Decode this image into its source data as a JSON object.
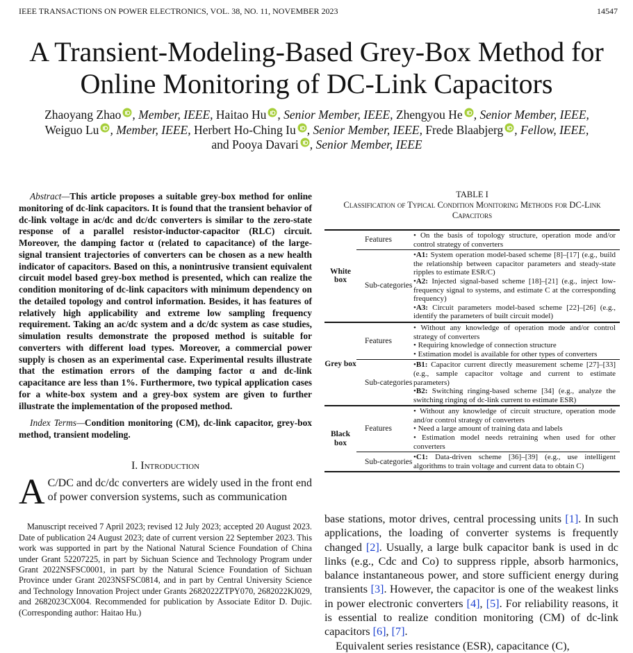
{
  "header": {
    "journal": "IEEE TRANSACTIONS ON POWER ELECTRONICS, VOL. 38, NO. 11, NOVEMBER 2023",
    "page": "14547"
  },
  "title_lines": [
    "A Transient-Modeling-Based Grey-Box Method for",
    "Online Monitoring of DC-Link Capacitors"
  ],
  "author_lines": [
    [
      {
        "name": "Zhaoyang Zhao",
        "role": ", Member, IEEE,"
      },
      {
        "name": "Haitao Hu",
        "role": ", Senior Member, IEEE,"
      },
      {
        "name": "Zhengyou He",
        "role": ", Senior Member, IEEE,"
      }
    ],
    [
      {
        "name": "Weiguo Lu",
        "role": ", Member, IEEE,"
      },
      {
        "name": "Herbert Ho-Ching Iu",
        "role": ", Senior Member, IEEE,"
      },
      {
        "name": "Frede Blaabjerg",
        "role": ", Fellow, IEEE,"
      }
    ],
    [
      {
        "name": "and Pooya Davari",
        "role": ", Senior Member, IEEE"
      }
    ]
  ],
  "abstract": {
    "label": "Abstract—",
    "text": "This article proposes a suitable grey-box method for online monitoring of dc-link capacitors. It is found that the transient behavior of dc-link voltage in ac/dc and dc/dc converters is similar to the zero-state response of a parallel resistor-inductor-capacitor (RLC) circuit. Moreover, the damping factor α (related to capacitance) of the large-signal transient trajectories of converters can be chosen as a new health indicator of capacitors. Based on this, a nonintrusive transient equivalent circuit model based grey-box method is presented, which can realize the condition monitoring of dc-link capacitors with minimum dependency on the detailed topology and control information. Besides, it has features of relatively high applicability and extreme low sampling frequency requirement. Taking an ac/dc system and a dc/dc system as case studies, simulation results demonstrate the proposed method is suitable for converters with different load types. Moreover, a commercial power supply is chosen as an experimental case. Experimental results illustrate that the estimation errors of the damping factor α and dc-link capacitance are less than 1%. Furthermore, two typical application cases for a white-box system and a grey-box system are given to further illustrate the implementation of the proposed method."
  },
  "index_terms": {
    "label": "Index Terms—",
    "text": "Condition monitoring (CM), dc-link capacitor, grey-box method, transient modeling."
  },
  "section": {
    "heading": "I. Introduction",
    "drop_cap": "A",
    "text": "C/DC and dc/dc converters are widely used in the front end of power conversion systems, such as communication"
  },
  "footnote": "Manuscript received 7 April 2023; revised 12 July 2023; accepted 20 August 2023. Date of publication 24 August 2023; date of current version 22 September 2023. This work was supported in part by the National Natural Science Foundation of China under Grant 52207225, in part by Sichuan Science and Technology Program under Grant 2022NSFSC0001, in part by the Natural Science Foundation of Sichuan Province under Grant 2023NSFSC0814, and in part by Central University Science and Technology Innovation Project under Grants 2682022ZTPY070, 2682022KJ029, and 2682023CX004. Recommended for publication by Associate Editor D. Dujic. (Corresponding author: Haitao Hu.)",
  "right_paragraphs": [
    "base stations, motor drives, central processing units [1]. In such applications, the loading of converter systems is frequently changed [2]. Usually, a large bulk capacitor bank is used in dc links (e.g., Cdc and Co) to suppress ripple, absorb harmonics, balance instantaneous power, and store sufficient energy during transients [3]. However, the capacitor is one of the weakest links in power electronic converters [4], [5]. For reliability reasons, it is essential to realize condition monitoring (CM) of dc-link capacitors [6], [7].",
    "Equivalent series resistance (ESR), capacitance (C),"
  ],
  "table": {
    "title": "TABLE I",
    "caption": "Classification of Typical Condition Monitoring Methods for DC-Link Capacitors",
    "groups": [
      {
        "name": "White box",
        "rows": [
          {
            "label": "Features",
            "items": [
              {
                "text": "On the basis of topology structure, operation mode and/or control strategy of converters"
              }
            ]
          },
          {
            "label": "Sub-categories",
            "items": [
              {
                "code": "A1:",
                "text": "System operation model-based scheme [8]–[17] (e.g., build the relationship between capacitor parameters and steady-state ripples to estimate ESR/C)"
              },
              {
                "code": "A2:",
                "text": "Injected signal-based scheme [18]–[21] (e.g., inject low-frequency signal to systems, and estimate C at the corresponding frequency)"
              },
              {
                "code": "A3:",
                "text": "Circuit parameters model-based scheme [22]–[26] (e.g., identify the parameters of built circuit model)"
              }
            ]
          }
        ]
      },
      {
        "name": "Grey box",
        "rows": [
          {
            "label": "Features",
            "items": [
              {
                "text": "Without any knowledge of operation mode and/or control strategy of converters"
              },
              {
                "text": "Requiring knowledge of connection structure"
              },
              {
                "text": "Estimation model is available for other types of converters"
              }
            ]
          },
          {
            "label": "Sub-categories",
            "items": [
              {
                "code": "B1:",
                "text": "Capacitor current directly measurement scheme [27]–[33] (e.g., sample capacitor voltage and current to estimate parameters)"
              },
              {
                "code": "B2:",
                "text": "Switching ringing-based scheme [34] (e.g., analyze the switching ringing of dc-link current to estimate ESR)"
              }
            ]
          }
        ]
      },
      {
        "name": "Black box",
        "rows": [
          {
            "label": "Features",
            "items": [
              {
                "text": "Without any knowledge of circuit structure, operation mode and/or control strategy of converters"
              },
              {
                "text": "Need a large amount of training data and labels"
              },
              {
                "text": "Estimation model needs retraining when used for other converters"
              }
            ]
          },
          {
            "label": "Sub-categories",
            "items": [
              {
                "code": "C1:",
                "text": "Data-driven scheme [36]–[39] (e.g., use intelligent algorithms to train voltage and current data to obtain C)"
              }
            ]
          }
        ]
      }
    ]
  }
}
